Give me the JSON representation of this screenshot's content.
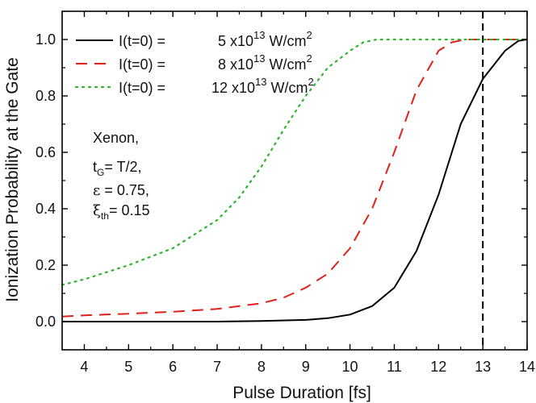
{
  "chart_data": {
    "type": "line",
    "xlabel": "Pulse Duration [fs]",
    "ylabel": "Ionization Probability at the Gate",
    "xlim": [
      3.5,
      14
    ],
    "ylim": [
      -0.1,
      1.1
    ],
    "xticks": [
      4,
      5,
      6,
      7,
      8,
      9,
      10,
      11,
      12,
      13,
      14
    ],
    "yticks": [
      0.0,
      0.2,
      0.4,
      0.6,
      0.8,
      1.0
    ],
    "grid": false,
    "legend_position": "top-left",
    "vline": {
      "x": 13,
      "style": "dashed",
      "color": "#000000"
    },
    "series": [
      {
        "name": "I(t=0) =    5 x10^13 W/cm^2",
        "color": "#000000",
        "style": "solid",
        "x": [
          3.5,
          5,
          6,
          7,
          8,
          9,
          9.5,
          10,
          10.5,
          11,
          11.5,
          12,
          12.5,
          13,
          13.5,
          13.8,
          14
        ],
        "y": [
          0.0,
          0.0,
          0.0,
          0.0,
          0.002,
          0.006,
          0.012,
          0.025,
          0.055,
          0.12,
          0.25,
          0.45,
          0.7,
          0.86,
          0.96,
          0.995,
          1.0
        ]
      },
      {
        "name": "I(t=0) =    8 x10^13 W/cm^2",
        "color": "#e0201b",
        "style": "dashed",
        "x": [
          3.5,
          4,
          5,
          6,
          7,
          8,
          8.5,
          9,
          9.5,
          10,
          10.5,
          11,
          11.5,
          12,
          12.3,
          12.6,
          13,
          14
        ],
        "y": [
          0.018,
          0.022,
          0.028,
          0.035,
          0.045,
          0.065,
          0.085,
          0.12,
          0.17,
          0.26,
          0.4,
          0.6,
          0.82,
          0.96,
          0.99,
          1.0,
          1.0,
          1.0
        ]
      },
      {
        "name": "I(t=0) =  12 x10^13 W/cm^2",
        "color": "#2eb52e",
        "style": "dotted",
        "x": [
          3.5,
          4,
          5,
          6,
          7,
          7.5,
          8,
          8.5,
          9,
          9.5,
          10,
          10.3,
          10.6,
          11,
          12,
          13,
          14
        ],
        "y": [
          0.13,
          0.15,
          0.2,
          0.26,
          0.36,
          0.44,
          0.55,
          0.68,
          0.8,
          0.9,
          0.96,
          0.99,
          1.0,
          1.0,
          1.0,
          1.0,
          1.0
        ]
      }
    ],
    "legend": [
      {
        "prefix": "I(t=0) =",
        "coef": "5 x10",
        "exp": "13",
        "unit": " W/cm",
        "unit_exp": "2"
      },
      {
        "prefix": "I(t=0) =",
        "coef": "8 x10",
        "exp": "13",
        "unit": " W/cm",
        "unit_exp": "2"
      },
      {
        "prefix": "I(t=0) =",
        "coef": "12 x10",
        "exp": "13",
        "unit": " W/cm",
        "unit_exp": "2"
      }
    ],
    "annotation": {
      "line1": "Xenon,",
      "t_main": "t",
      "t_sub": "G",
      "t_rest": "= T/2,",
      "eps_sym": "ε",
      "eps_rest": " = 0.75,",
      "xi_sym": "ξ",
      "xi_sub": "th",
      "xi_rest": "= 0.15"
    }
  }
}
